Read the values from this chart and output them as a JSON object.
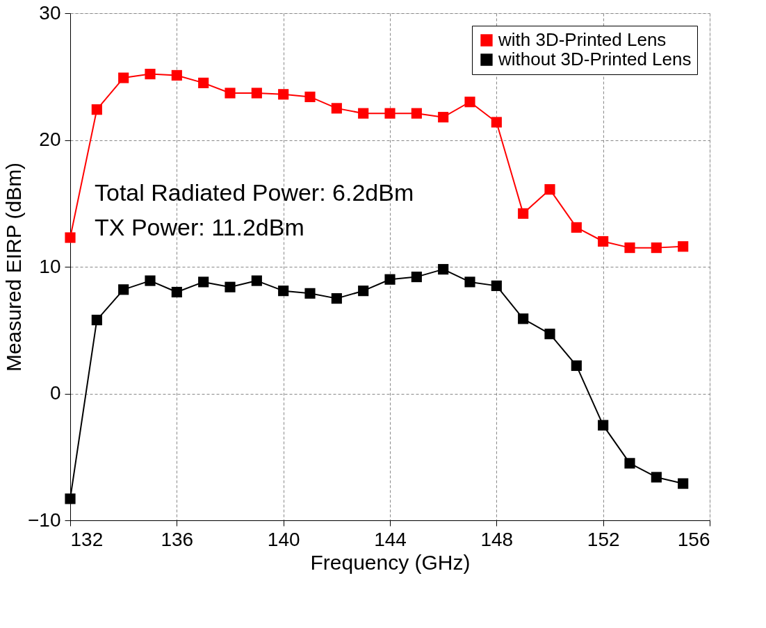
{
  "chart_data": {
    "type": "line",
    "xlabel": "Frequency (GHz)",
    "ylabel": "Measured EIRP (dBm)",
    "x": [
      132,
      133,
      134,
      135,
      136,
      137,
      138,
      139,
      140,
      141,
      142,
      143,
      144,
      145,
      146,
      147,
      148,
      149,
      150,
      151,
      152,
      153,
      154,
      155
    ],
    "series": [
      {
        "name": "with 3D-Printed Lens",
        "color": "#ff0000",
        "values": [
          12.3,
          22.4,
          24.9,
          25.2,
          25.1,
          24.5,
          23.7,
          23.7,
          23.6,
          23.4,
          22.5,
          22.1,
          22.1,
          22.1,
          21.8,
          23.0,
          21.4,
          14.2,
          16.1,
          13.1,
          12.0,
          11.5,
          11.5,
          11.6
        ]
      },
      {
        "name": "without 3D-Printed Lens",
        "color": "#000000",
        "values": [
          -8.3,
          5.8,
          8.2,
          8.9,
          8.0,
          8.8,
          8.4,
          8.9,
          8.1,
          7.9,
          7.5,
          8.1,
          9.0,
          9.2,
          9.8,
          8.8,
          8.5,
          5.9,
          4.7,
          2.2,
          -2.5,
          -5.5,
          -6.6,
          -7.1
        ]
      }
    ],
    "xlim": [
      132,
      156
    ],
    "xticks": [
      132,
      136,
      140,
      144,
      148,
      152,
      156
    ],
    "ylim": [
      -10,
      30
    ],
    "yticks": [
      -10,
      0,
      10,
      20,
      30
    ],
    "annotations": [
      "Total Radiated Power: 6.2dBm",
      "TX Power: 11.2dBm"
    ],
    "grid": true,
    "legend": "top right",
    "marker": "square",
    "line_style": "solid"
  }
}
